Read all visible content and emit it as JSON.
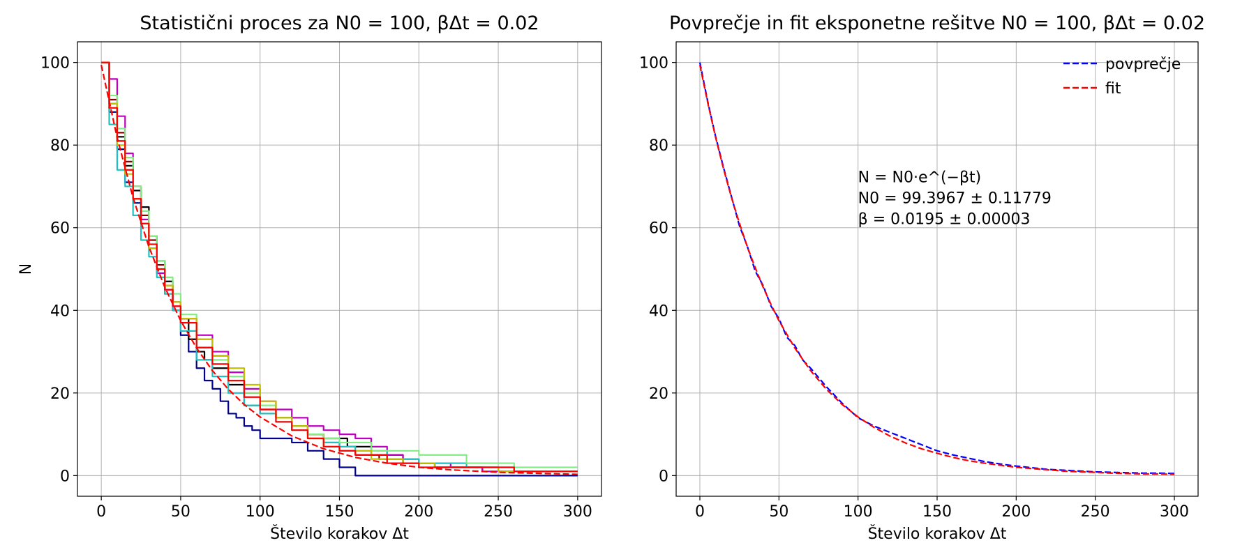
{
  "chart_data": [
    {
      "type": "line",
      "title": "Statistični proces za N0 = 100, βΔt = 0.02",
      "xlabel": "Število korakov Δt",
      "ylabel": "N",
      "xlim": [
        -15,
        315
      ],
      "ylim": [
        -5,
        105
      ],
      "xticks": [
        0,
        50,
        100,
        150,
        200,
        250,
        300
      ],
      "yticks": [
        0,
        20,
        40,
        60,
        80,
        100
      ],
      "grid": true,
      "legend": null,
      "series": [
        {
          "color": "#00008b",
          "style": "solid",
          "x": [
            0,
            5,
            10,
            15,
            20,
            25,
            30,
            35,
            40,
            45,
            50,
            55,
            60,
            65,
            70,
            75,
            80,
            85,
            90,
            95,
            100,
            110,
            120,
            130,
            140,
            150,
            160,
            170,
            185,
            200,
            220,
            250,
            300
          ],
          "y": [
            100,
            88,
            79,
            71,
            66,
            61,
            55,
            49,
            44,
            40,
            34,
            30,
            26,
            23,
            21,
            18,
            15,
            14,
            12,
            11,
            9,
            9,
            8,
            6,
            4,
            2,
            0,
            0,
            0,
            0,
            0,
            0,
            0
          ]
        },
        {
          "color": "#000000",
          "style": "solid",
          "x": [
            0,
            5,
            10,
            15,
            20,
            25,
            30,
            35,
            40,
            45,
            50,
            55,
            60,
            65,
            70,
            80,
            90,
            100,
            110,
            120,
            130,
            140,
            155,
            170,
            190,
            210,
            240,
            300
          ],
          "y": [
            100,
            90,
            82,
            75,
            69,
            65,
            58,
            52,
            47,
            42,
            38,
            33,
            30,
            28,
            26,
            22,
            17,
            15,
            14,
            12,
            10,
            9,
            7,
            5,
            3,
            2,
            1,
            1
          ]
        },
        {
          "color": "#8b0000",
          "style": "solid",
          "x": [
            0,
            5,
            10,
            15,
            20,
            25,
            30,
            35,
            40,
            45,
            50,
            60,
            70,
            80,
            90,
            100,
            110,
            120,
            130,
            140,
            150,
            160,
            175,
            190,
            210,
            250,
            300
          ],
          "y": [
            100,
            91,
            83,
            76,
            70,
            63,
            57,
            51,
            46,
            42,
            37,
            31,
            29,
            25,
            20,
            16,
            14,
            12,
            10,
            8,
            6,
            5,
            4,
            3,
            2,
            1,
            1
          ]
        },
        {
          "color": "#c000c0",
          "style": "solid",
          "x": [
            0,
            5,
            10,
            15,
            20,
            25,
            30,
            35,
            40,
            45,
            50,
            60,
            70,
            80,
            90,
            100,
            110,
            120,
            130,
            140,
            150,
            160,
            170,
            180,
            190,
            200,
            220,
            240,
            300
          ],
          "y": [
            100,
            96,
            87,
            78,
            70,
            62,
            55,
            49,
            45,
            41,
            38,
            34,
            30,
            25,
            21,
            18,
            16,
            14,
            12,
            11,
            10,
            9,
            7,
            5,
            4,
            3,
            2,
            1,
            1
          ]
        },
        {
          "color": "#20c0c0",
          "style": "solid",
          "x": [
            0,
            5,
            10,
            15,
            20,
            25,
            30,
            35,
            40,
            45,
            50,
            60,
            70,
            80,
            90,
            100,
            110,
            120,
            130,
            140,
            150,
            160,
            180,
            200,
            230,
            260,
            300
          ],
          "y": [
            100,
            85,
            74,
            70,
            63,
            57,
            53,
            48,
            44,
            40,
            35,
            28,
            24,
            20,
            17,
            15,
            13,
            11,
            9,
            8,
            7,
            6,
            4,
            3,
            2,
            1,
            1
          ]
        },
        {
          "color": "#80ee80",
          "style": "solid",
          "x": [
            0,
            5,
            10,
            15,
            20,
            25,
            30,
            35,
            40,
            45,
            50,
            60,
            70,
            80,
            90,
            100,
            110,
            120,
            130,
            140,
            150,
            170,
            200,
            230,
            260,
            300
          ],
          "y": [
            100,
            92,
            84,
            77,
            70,
            64,
            58,
            52,
            48,
            44,
            39,
            33,
            28,
            24,
            20,
            17,
            14,
            12,
            10,
            9,
            8,
            6,
            5,
            3,
            2,
            2
          ]
        },
        {
          "color": "#c0c000",
          "style": "solid",
          "x": [
            0,
            5,
            10,
            15,
            20,
            25,
            30,
            35,
            40,
            45,
            50,
            60,
            70,
            80,
            90,
            100,
            110,
            120,
            130,
            140,
            150,
            170,
            190,
            210,
            250,
            300
          ],
          "y": [
            100,
            90,
            80,
            73,
            67,
            61,
            55,
            50,
            46,
            42,
            38,
            33,
            29,
            26,
            22,
            18,
            14,
            12,
            9,
            7,
            6,
            4,
            3,
            2,
            1,
            1
          ]
        },
        {
          "color": "#ff0000",
          "style": "solid",
          "x": [
            0,
            5,
            10,
            15,
            20,
            25,
            30,
            35,
            40,
            45,
            50,
            60,
            70,
            80,
            90,
            100,
            110,
            120,
            130,
            140,
            150,
            160,
            180,
            200,
            230,
            260,
            300
          ],
          "y": [
            100,
            89,
            81,
            74,
            67,
            61,
            56,
            50,
            45,
            41,
            37,
            31,
            27,
            23,
            19,
            16,
            13,
            11,
            9,
            7,
            6,
            5,
            3,
            2,
            2,
            1,
            1
          ]
        },
        {
          "color": "#ff0000",
          "style": "dashed",
          "x": [
            0,
            10,
            20,
            30,
            40,
            50,
            60,
            70,
            80,
            90,
            100,
            120,
            140,
            160,
            180,
            200,
            220,
            250,
            300
          ],
          "y": [
            99.4,
            81.8,
            67.3,
            55.4,
            45.6,
            37.5,
            30.9,
            25.4,
            20.9,
            17.2,
            14.2,
            9.6,
            6.5,
            4.4,
            3.0,
            2.0,
            1.4,
            0.8,
            0.3
          ]
        }
      ]
    },
    {
      "type": "line",
      "title": "Povprečje in fit eksponetne rešitve N0 = 100, βΔt = 0.02",
      "xlabel": "Število korakov Δt",
      "ylabel": "",
      "xlim": [
        -15,
        315
      ],
      "ylim": [
        -5,
        105
      ],
      "xticks": [
        0,
        50,
        100,
        150,
        200,
        250,
        300
      ],
      "yticks": [
        0,
        20,
        40,
        60,
        80,
        100
      ],
      "grid": true,
      "legend": "top-right",
      "annotation": [
        "N = N0·e^(−βt)",
        "N0 = 99.3967 ± 0.11779",
        "β = 0.0195 ± 0.00003"
      ],
      "series": [
        {
          "name": "povprečje",
          "color": "#0000ff",
          "style": "dashed",
          "x": [
            0,
            5,
            10,
            15,
            20,
            25,
            30,
            35,
            40,
            45,
            50,
            55,
            60,
            65,
            70,
            80,
            90,
            100,
            110,
            120,
            130,
            140,
            150,
            160,
            170,
            180,
            190,
            200,
            210,
            220,
            230,
            240,
            250,
            260,
            270,
            280,
            290,
            300
          ],
          "y": [
            100,
            90.5,
            82,
            74.5,
            67.5,
            60.5,
            55.5,
            49.5,
            46,
            41,
            38,
            33.5,
            31.5,
            28,
            26,
            21.5,
            17.5,
            14,
            12,
            10.5,
            9,
            7.5,
            6,
            5,
            4.2,
            3.4,
            2.8,
            2.3,
            1.9,
            1.5,
            1.3,
            1.1,
            0.9,
            0.8,
            0.7,
            0.6,
            0.6,
            0.5
          ]
        },
        {
          "name": "fit",
          "color": "#ff0000",
          "style": "dashed",
          "x": [
            0,
            5,
            10,
            15,
            20,
            25,
            30,
            35,
            40,
            45,
            50,
            60,
            70,
            80,
            90,
            100,
            110,
            120,
            130,
            140,
            150,
            160,
            170,
            180,
            190,
            200,
            210,
            220,
            230,
            240,
            250,
            260,
            270,
            280,
            290,
            300
          ],
          "y": [
            99.4,
            90.2,
            81.8,
            74.2,
            67.3,
            61.1,
            55.4,
            50.3,
            45.6,
            41.4,
            37.5,
            30.9,
            25.4,
            20.9,
            17.2,
            14.2,
            11.7,
            9.6,
            7.9,
            6.5,
            5.4,
            4.4,
            3.6,
            3.0,
            2.5,
            2.0,
            1.7,
            1.4,
            1.1,
            0.9,
            0.8,
            0.6,
            0.5,
            0.4,
            0.4,
            0.3
          ]
        }
      ]
    }
  ]
}
